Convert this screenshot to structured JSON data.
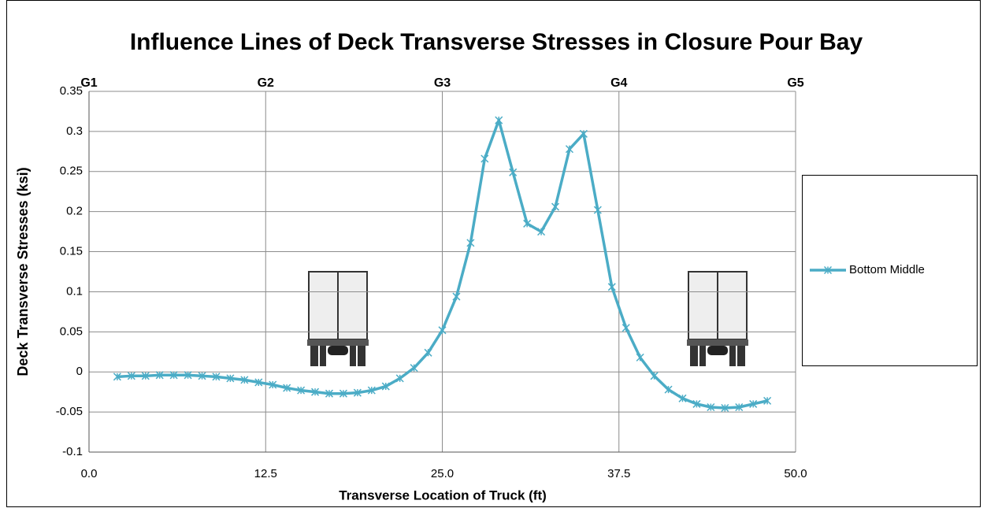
{
  "chart_data": {
    "type": "line",
    "title": "Influence Lines of Deck Transverse Stresses in Closure Pour Bay",
    "x_label": "Transverse Location of Truck (ft)",
    "y_label": "Deck Transverse Stresses (ksi)",
    "x": [
      2,
      3,
      4,
      5,
      6,
      7,
      8,
      9,
      10,
      11,
      12,
      13,
      14,
      15,
      16,
      17,
      18,
      19,
      20,
      21,
      22,
      23,
      24,
      25,
      26,
      27,
      28,
      29,
      30,
      31,
      32,
      33,
      34,
      35,
      36,
      37,
      38,
      39,
      40,
      41,
      42,
      43,
      44,
      45,
      46,
      47,
      48
    ],
    "series": [
      {
        "name": "Bottom Middle",
        "color": "#4bacc6",
        "values": [
          -0.006,
          -0.005,
          -0.005,
          -0.004,
          -0.004,
          -0.004,
          -0.005,
          -0.006,
          -0.008,
          -0.01,
          -0.013,
          -0.016,
          -0.02,
          -0.023,
          -0.025,
          -0.027,
          -0.027,
          -0.026,
          -0.023,
          -0.018,
          -0.008,
          0.005,
          0.024,
          0.052,
          0.094,
          0.161,
          0.266,
          0.314,
          0.249,
          0.185,
          0.175,
          0.206,
          0.278,
          0.297,
          0.202,
          0.106,
          0.055,
          0.018,
          -0.005,
          -0.022,
          -0.033,
          -0.04,
          -0.044,
          -0.045,
          -0.044,
          -0.04,
          -0.036
        ]
      }
    ],
    "xlim": [
      0,
      50
    ],
    "xticks": [
      {
        "value": 0,
        "label": "0.0"
      },
      12.5,
      {
        "value": 25,
        "label": "25.0"
      },
      37.5,
      {
        "value": 50,
        "label": "50.0"
      }
    ],
    "ylim": [
      -0.1,
      0.35
    ],
    "yticks": [
      -0.1,
      -0.05,
      0,
      0.05,
      0.1,
      0.15,
      0.2,
      0.25,
      0.3,
      0.35
    ],
    "grid": true,
    "legend": "right",
    "annotations": [
      {
        "text": "G1",
        "x": 0
      },
      {
        "text": "G2",
        "x": 12.5
      },
      {
        "text": "G3",
        "x": 25
      },
      {
        "text": "G4",
        "x": 37.5
      },
      {
        "text": "G5",
        "x": 50
      }
    ]
  }
}
